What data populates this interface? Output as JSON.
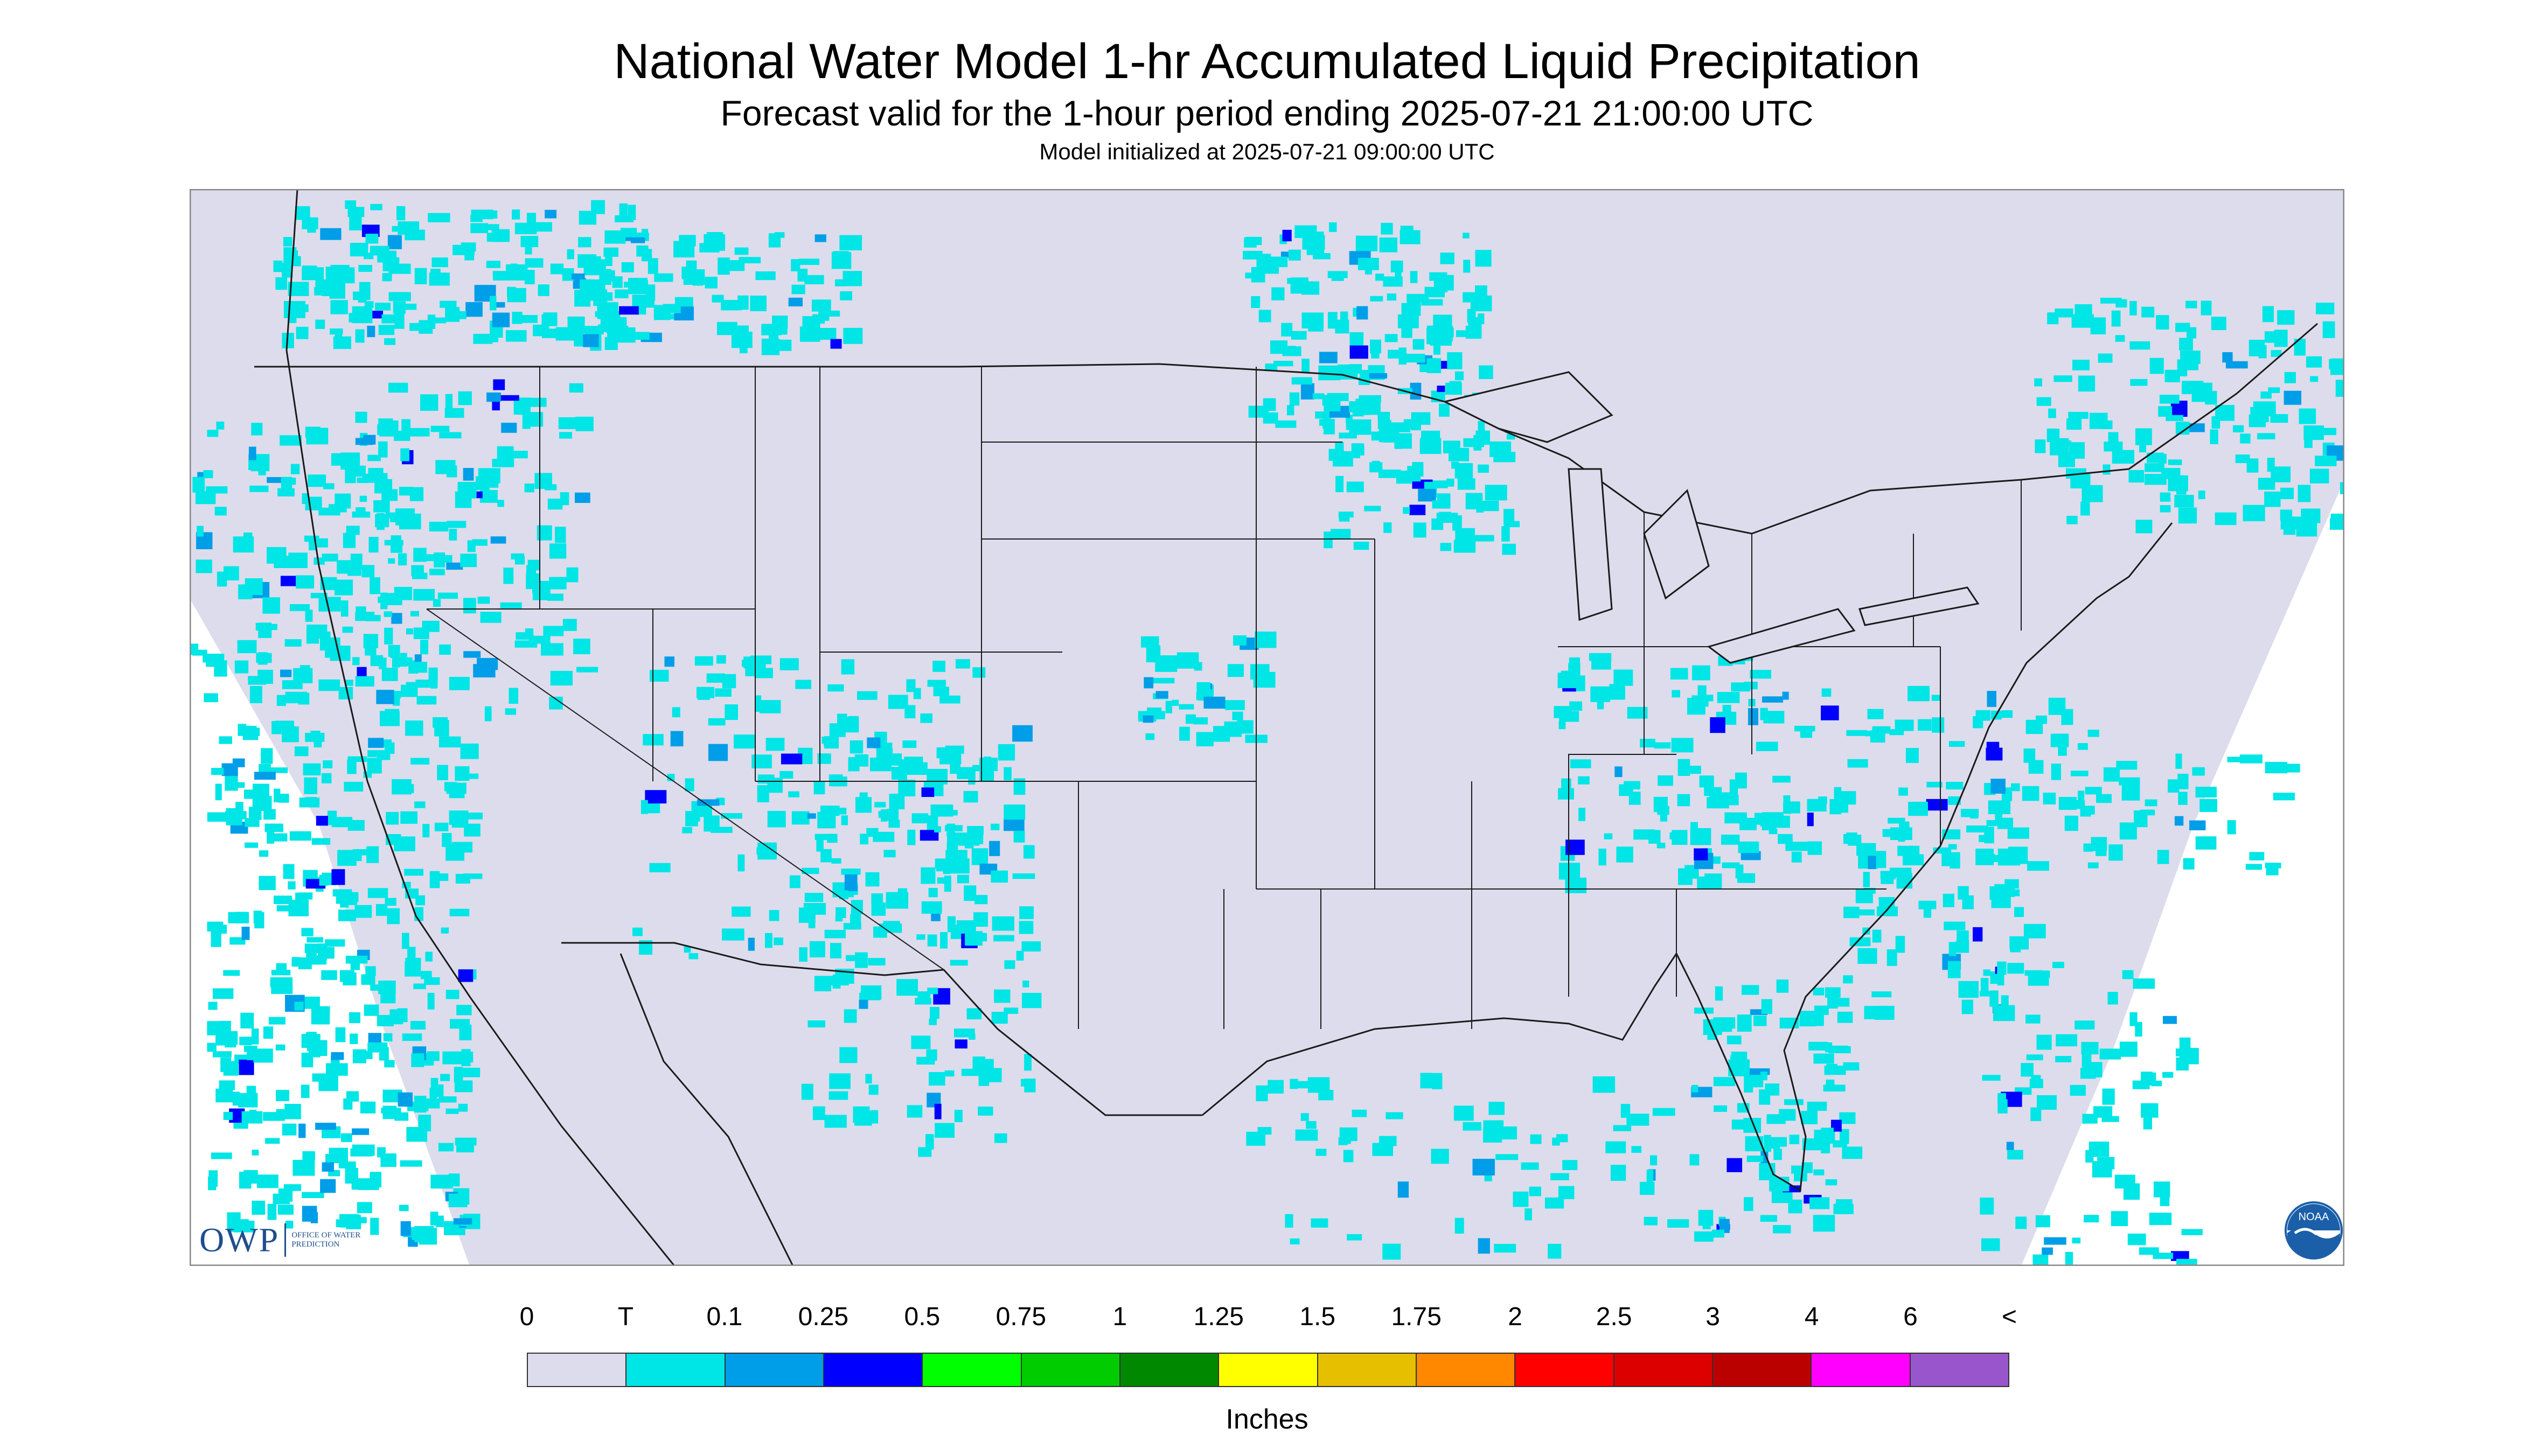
{
  "title": "National Water Model 1-hr Accumulated Liquid Precipitation",
  "subtitle": "Forecast valid for the 1-hour period ending 2025-07-21 21:00:00 UTC",
  "init_line": "Model initialized at 2025-07-21 09:00:00 UTC",
  "map": {
    "background_color": "#dcdcec",
    "outside_color": "#ffffff",
    "boundary_color": "#1a1a1a",
    "precip_colors": {
      "trace": "#00e5e5",
      "light": "#009ee8",
      "moderate": "#0000ff",
      "heavy": "#00cc00"
    }
  },
  "logos": {
    "owp_mark": "OWP",
    "owp_text": "OFFICE OF WATER PREDICTION",
    "noaa_text": "NOAA"
  },
  "legend": {
    "unit_label": "Inches",
    "tick_labels": [
      "0",
      "T",
      "0.1",
      "0.25",
      "0.5",
      "0.75",
      "1",
      "1.25",
      "1.5",
      "1.75",
      "2",
      "2.5",
      "3",
      "4",
      "6",
      "<"
    ],
    "colors": [
      "#dcdcec",
      "#00e5e5",
      "#009ee8",
      "#0000ff",
      "#00ff00",
      "#00cc00",
      "#008800",
      "#ffff00",
      "#e6c000",
      "#ff8800",
      "#ff0000",
      "#dd0000",
      "#bb0000",
      "#ff00ff",
      "#9955cc"
    ]
  }
}
